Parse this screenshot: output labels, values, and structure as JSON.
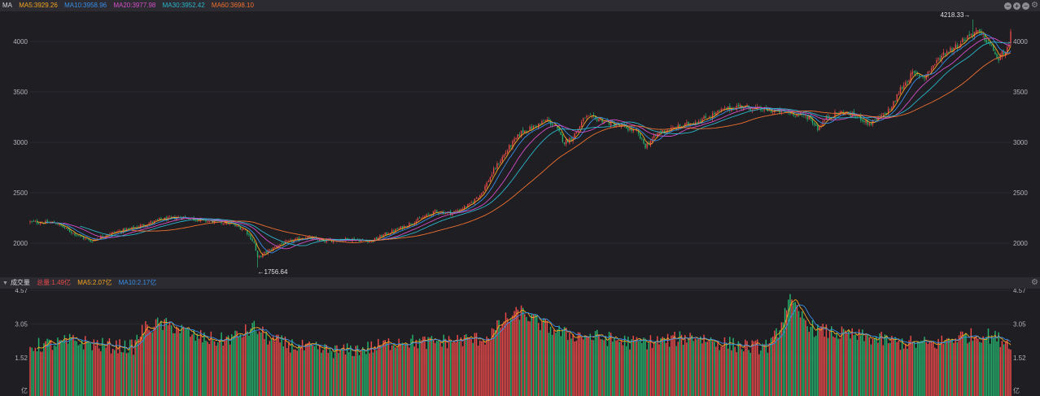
{
  "price_header": {
    "title": "MA",
    "items": [
      {
        "text": "MA5:3929.26",
        "color": "#f5a623"
      },
      {
        "text": "MA10:3958.96",
        "color": "#3a8ee6"
      },
      {
        "text": "MA20:3977.98",
        "color": "#d64fc8"
      },
      {
        "text": "MA30:3952.42",
        "color": "#2cb5c9"
      },
      {
        "text": "MA60:3698.10",
        "color": "#f07030"
      }
    ],
    "controls": [
      "minus-icon",
      "plus-icon",
      "minus-icon",
      "gear-icon"
    ]
  },
  "volume_header": {
    "title": "成交量",
    "items": [
      {
        "text": "总量:1.49亿",
        "color": "#e84a4a"
      },
      {
        "text": "MA5:2.07亿",
        "color": "#f5a623"
      },
      {
        "text": "MA10:2.17亿",
        "color": "#3a8ee6"
      }
    ],
    "controls": [
      "gear-icon"
    ]
  },
  "colors": {
    "up": "#e84a4a",
    "down": "#26b06b",
    "background": "#1e1e23",
    "ma5": "#f5a623",
    "ma10": "#3a8ee6",
    "ma20": "#d64fc8",
    "ma30": "#2cb5c9",
    "ma60": "#f07030"
  },
  "chart_data": [
    {
      "type": "candlestick",
      "y_ticks": [
        2000,
        2500,
        3000,
        3500,
        4000
      ],
      "y_tick_labels": [
        "2000",
        "2500",
        "3000",
        "3500",
        "4000"
      ],
      "ylim": [
        1700,
        4300
      ],
      "close_path": [
        [
          0,
          2210
        ],
        [
          15,
          2200
        ],
        [
          25,
          2100
        ],
        [
          35,
          2020
        ],
        [
          45,
          2090
        ],
        [
          60,
          2150
        ],
        [
          75,
          2230
        ],
        [
          88,
          2260
        ],
        [
          100,
          2225
        ],
        [
          115,
          2200
        ],
        [
          125,
          2130
        ],
        [
          130,
          2000
        ],
        [
          132,
          1850
        ],
        [
          136,
          1900
        ],
        [
          145,
          1990
        ],
        [
          160,
          2060
        ],
        [
          170,
          2020
        ],
        [
          185,
          2040
        ],
        [
          198,
          2020
        ],
        [
          205,
          2080
        ],
        [
          215,
          2150
        ],
        [
          225,
          2230
        ],
        [
          235,
          2310
        ],
        [
          245,
          2300
        ],
        [
          255,
          2380
        ],
        [
          262,
          2500
        ],
        [
          270,
          2750
        ],
        [
          278,
          2950
        ],
        [
          285,
          3100
        ],
        [
          292,
          3150
        ],
        [
          300,
          3220
        ],
        [
          305,
          3150
        ],
        [
          310,
          3000
        ],
        [
          315,
          3050
        ],
        [
          322,
          3250
        ],
        [
          330,
          3230
        ],
        [
          338,
          3180
        ],
        [
          345,
          3150
        ],
        [
          352,
          3100
        ],
        [
          357,
          2960
        ],
        [
          365,
          3100
        ],
        [
          372,
          3130
        ],
        [
          382,
          3180
        ],
        [
          392,
          3240
        ],
        [
          402,
          3320
        ],
        [
          412,
          3360
        ],
        [
          422,
          3330
        ],
        [
          432,
          3310
        ],
        [
          442,
          3290
        ],
        [
          452,
          3250
        ],
        [
          457,
          3140
        ],
        [
          462,
          3240
        ],
        [
          467,
          3280
        ],
        [
          472,
          3300
        ],
        [
          482,
          3240
        ],
        [
          487,
          3180
        ],
        [
          495,
          3270
        ],
        [
          500,
          3350
        ],
        [
          505,
          3530
        ],
        [
          512,
          3680
        ],
        [
          519,
          3650
        ],
        [
          525,
          3780
        ],
        [
          530,
          3880
        ],
        [
          537,
          3950
        ],
        [
          544,
          4050
        ],
        [
          549,
          4100
        ],
        [
          554,
          4030
        ],
        [
          559,
          3920
        ],
        [
          562,
          3800
        ],
        [
          564,
          3880
        ],
        [
          568,
          3940
        ],
        [
          569,
          4070
        ]
      ],
      "high_annotation": {
        "text": "4218.33→",
        "value": 4218.33
      },
      "low_annotation": {
        "text": "←1756.64",
        "value": 1756.64
      },
      "moving_averages": [
        {
          "name": "MA5",
          "period": 5
        },
        {
          "name": "MA10",
          "period": 10
        },
        {
          "name": "MA20",
          "period": 20
        },
        {
          "name": "MA30",
          "period": 30
        },
        {
          "name": "MA60",
          "period": 60
        }
      ]
    },
    {
      "type": "bar",
      "y_ticks": [
        1.52,
        3.05,
        4.57
      ],
      "y_tick_labels": [
        "1.52",
        "3.05",
        "4.57"
      ],
      "unit_label": "亿",
      "ylim": [
        0,
        4.57
      ],
      "volume_path": [
        [
          0,
          2.05
        ],
        [
          15,
          2.15
        ],
        [
          25,
          2.3
        ],
        [
          40,
          2.1
        ],
        [
          60,
          2.0
        ],
        [
          65,
          2.8
        ],
        [
          75,
          3.05
        ],
        [
          85,
          2.9
        ],
        [
          95,
          2.5
        ],
        [
          110,
          2.3
        ],
        [
          120,
          2.5
        ],
        [
          130,
          2.9
        ],
        [
          140,
          2.3
        ],
        [
          160,
          1.95
        ],
        [
          180,
          1.8
        ],
        [
          200,
          2.0
        ],
        [
          215,
          2.3
        ],
        [
          230,
          2.2
        ],
        [
          245,
          2.3
        ],
        [
          265,
          2.4
        ],
        [
          275,
          3.2
        ],
        [
          285,
          3.6
        ],
        [
          295,
          3.1
        ],
        [
          310,
          2.6
        ],
        [
          330,
          2.45
        ],
        [
          350,
          2.2
        ],
        [
          370,
          2.3
        ],
        [
          385,
          2.5
        ],
        [
          400,
          2.2
        ],
        [
          420,
          2.0
        ],
        [
          430,
          2.1
        ],
        [
          436,
          3.1
        ],
        [
          440,
          4.2
        ],
        [
          445,
          3.6
        ],
        [
          455,
          2.8
        ],
        [
          470,
          2.6
        ],
        [
          490,
          2.4
        ],
        [
          505,
          2.2
        ],
        [
          525,
          2.15
        ],
        [
          540,
          2.5
        ],
        [
          555,
          2.55
        ],
        [
          569,
          2.2
        ]
      ],
      "moving_averages": [
        {
          "name": "MA5",
          "period": 5
        },
        {
          "name": "MA10",
          "period": 10
        }
      ]
    }
  ]
}
